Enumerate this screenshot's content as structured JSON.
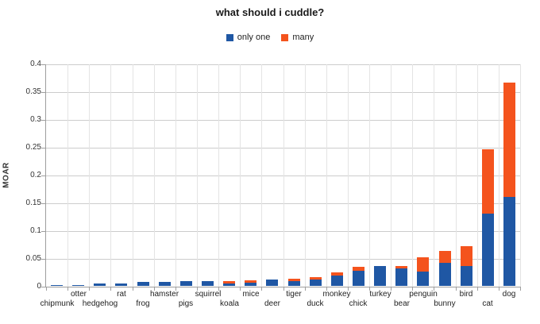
{
  "title": "what should i cuddle?",
  "legend": {
    "items": [
      {
        "label": "only one",
        "color": "#1F57A4"
      },
      {
        "label": "many",
        "color": "#F4531D"
      }
    ]
  },
  "colors": {
    "only_one": "#1F57A4",
    "many": "#F4531D",
    "grid_h": "#cccccc",
    "grid_v": "#e4e4e4",
    "axis": "#9e9e9e"
  },
  "chart_data": {
    "type": "bar",
    "stacked": true,
    "title": "what should i cuddle?",
    "xlabel": "",
    "ylabel": "MOAR",
    "ylim": [
      0,
      0.4
    ],
    "ytick_step": 0.05,
    "grid": true,
    "legend_position": "top-center",
    "categories": [
      "chipmunk",
      "otter",
      "hedgehog",
      "rat",
      "frog",
      "hamster",
      "pigs",
      "squirrel",
      "koala",
      "mice",
      "deer",
      "tiger",
      "duck",
      "monkey",
      "chick",
      "turkey",
      "bear",
      "penguin",
      "bunny",
      "bird",
      "cat",
      "dog"
    ],
    "series": [
      {
        "name": "only one",
        "color": "#1F57A4",
        "values": [
          0.001,
          0.001,
          0.004,
          0.004,
          0.007,
          0.007,
          0.008,
          0.008,
          0.005,
          0.006,
          0.012,
          0.009,
          0.012,
          0.019,
          0.027,
          0.036,
          0.032,
          0.026,
          0.042,
          0.036,
          0.13,
          0.16
        ]
      },
      {
        "name": "many",
        "color": "#F4531D",
        "values": [
          0,
          0,
          0,
          0,
          0,
          0,
          0,
          0,
          0.005,
          0.005,
          0,
          0.005,
          0.005,
          0.006,
          0.007,
          0,
          0.005,
          0.025,
          0.021,
          0.035,
          0.115,
          0.206
        ]
      }
    ]
  }
}
